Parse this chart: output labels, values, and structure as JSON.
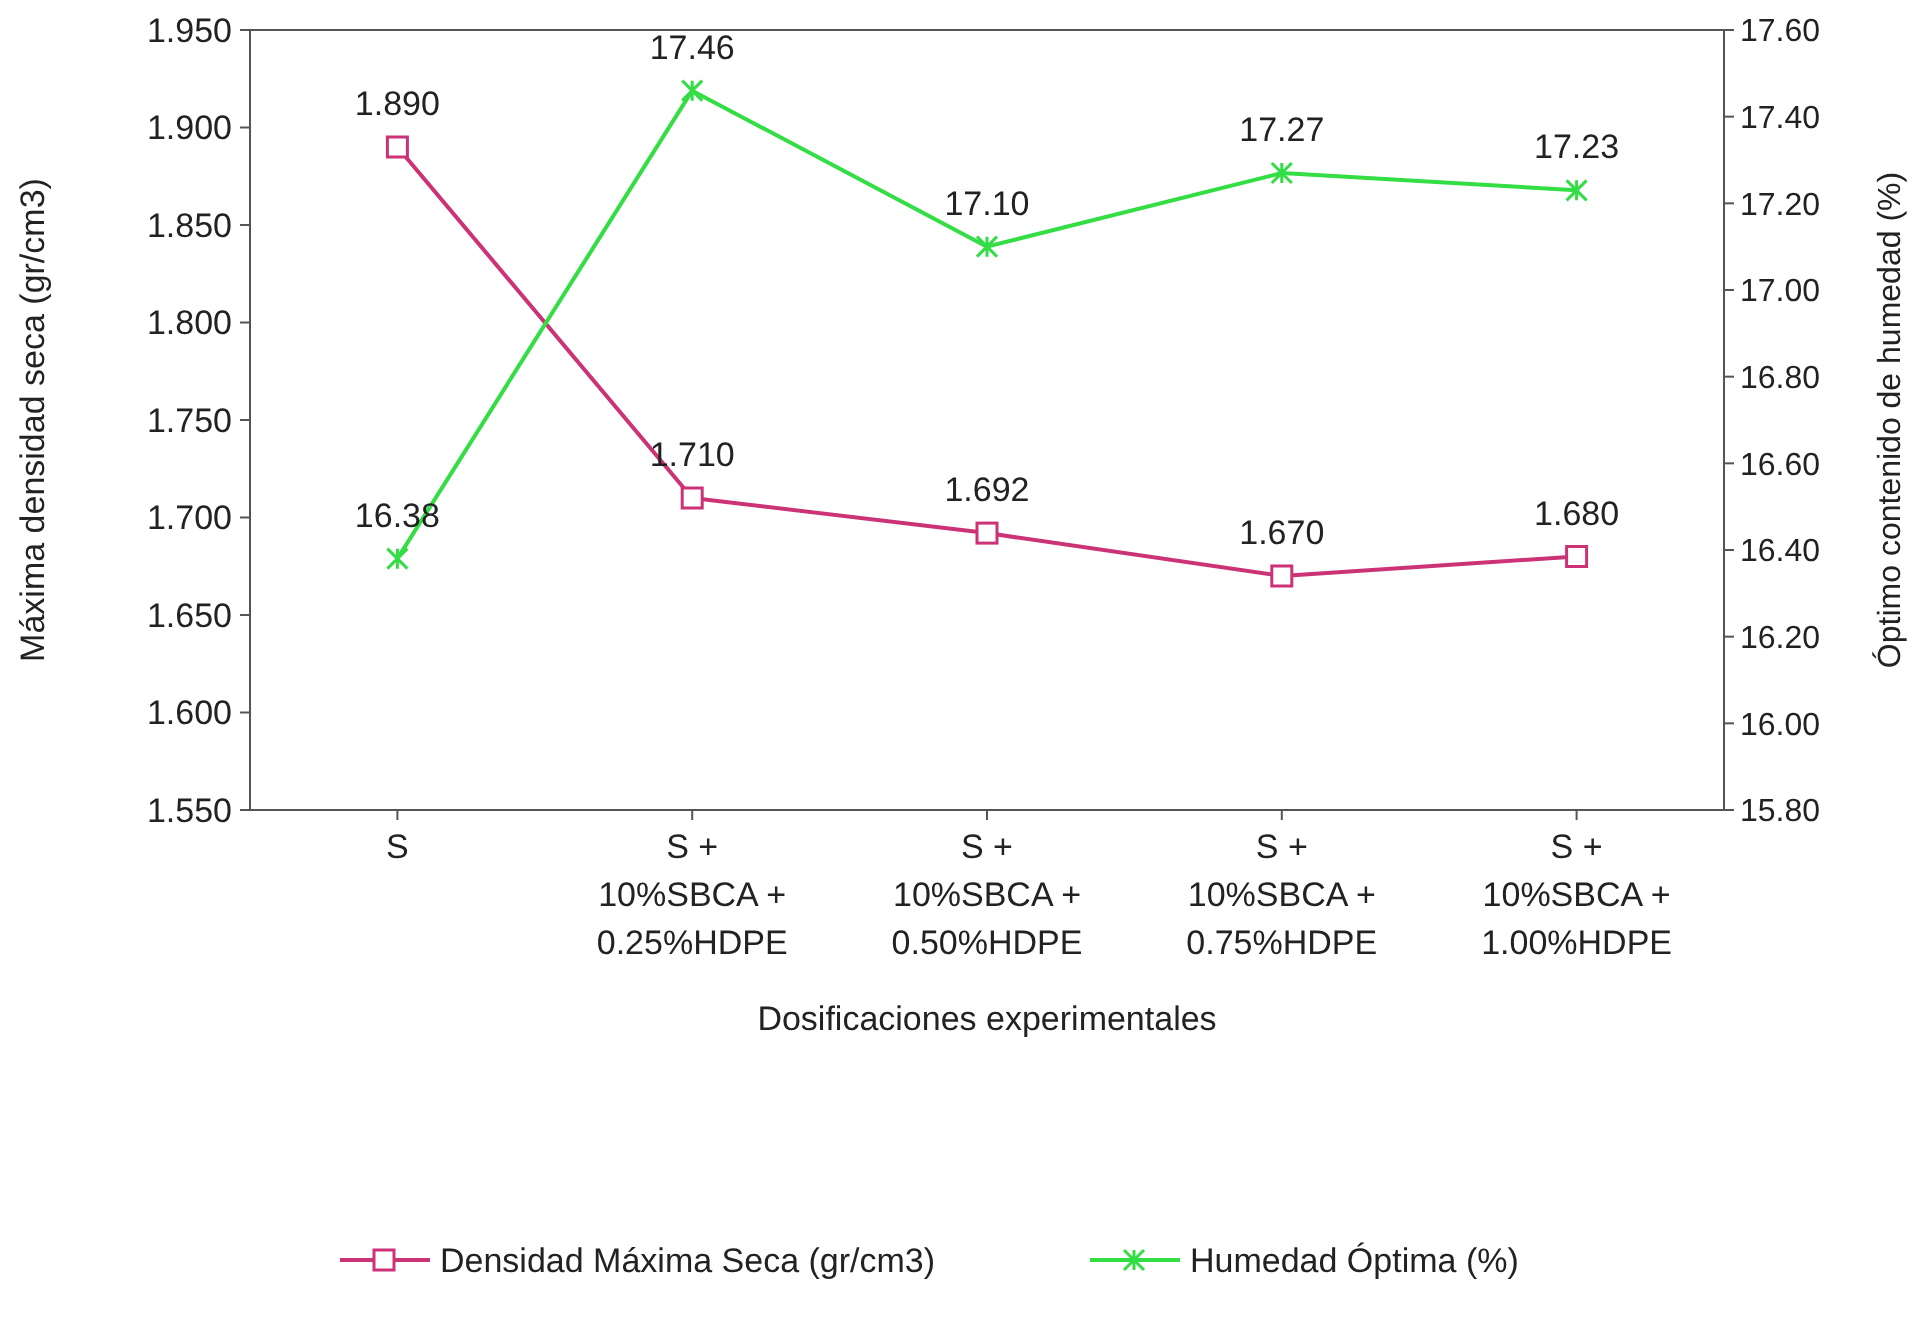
{
  "chart_data": {
    "type": "line",
    "xlabel": "Dosificaciones experimentales",
    "ylabel": "Máxima densidad seca (gr/cm3)",
    "y2label": "Óptimo contenido de humedad (%)",
    "categories": [
      "S",
      "S +\n10%SBCA +\n0.25%HDPE",
      "S +\n10%SBCA +\n0.50%HDPE",
      "S +\n10%SBCA +\n0.75%HDPE",
      "S +\n10%SBCA +\n1.00%HDPE"
    ],
    "series": [
      {
        "name": "Densidad Máxima Seca (gr/cm3)",
        "color": "#cc3377",
        "marker": "square",
        "values": [
          1.89,
          1.71,
          1.692,
          1.67,
          1.68
        ],
        "value_labels": [
          "1.890",
          "1.710",
          "1.692",
          "1.670",
          "1.680"
        ]
      },
      {
        "name": "Humedad Óptima (%)",
        "color": "#33dd44",
        "marker": "cross",
        "axis": "y2",
        "values": [
          16.38,
          17.46,
          17.1,
          17.27,
          17.23
        ],
        "value_labels": [
          "16.38",
          "17.46",
          "17.10",
          "17.27",
          "17.23"
        ]
      }
    ],
    "ylim": [
      1.55,
      1.95
    ],
    "yticks": [
      {
        "value": 1.55,
        "label": "1.550"
      },
      {
        "value": 1.6,
        "label": "1.600"
      },
      {
        "value": 1.65,
        "label": "1.650"
      },
      {
        "value": 1.7,
        "label": "1.700"
      },
      {
        "value": 1.75,
        "label": "1.750"
      },
      {
        "value": 1.8,
        "label": "1.800"
      },
      {
        "value": 1.85,
        "label": "1.850"
      },
      {
        "value": 1.9,
        "label": "1.900"
      },
      {
        "value": 1.95,
        "label": "1.950"
      }
    ],
    "y2lim": [
      15.8,
      17.6
    ],
    "y2ticks": [
      {
        "value": 15.8,
        "label": "15.80"
      },
      {
        "value": 16,
        "label": "16.00"
      },
      {
        "value": 16.2,
        "label": "16.20"
      },
      {
        "value": 16.4,
        "label": "16.40"
      },
      {
        "value": 16.6,
        "label": "16.60"
      },
      {
        "value": 16.8,
        "label": "16.80"
      },
      {
        "value": 17,
        "label": "17.00"
      },
      {
        "value": 17.2,
        "label": "17.20"
      },
      {
        "value": 17.4,
        "label": "17.40"
      },
      {
        "value": 17.6,
        "label": "17.60"
      }
    ],
    "grid": false,
    "legend": "bottom",
    "line_style": "solid"
  }
}
